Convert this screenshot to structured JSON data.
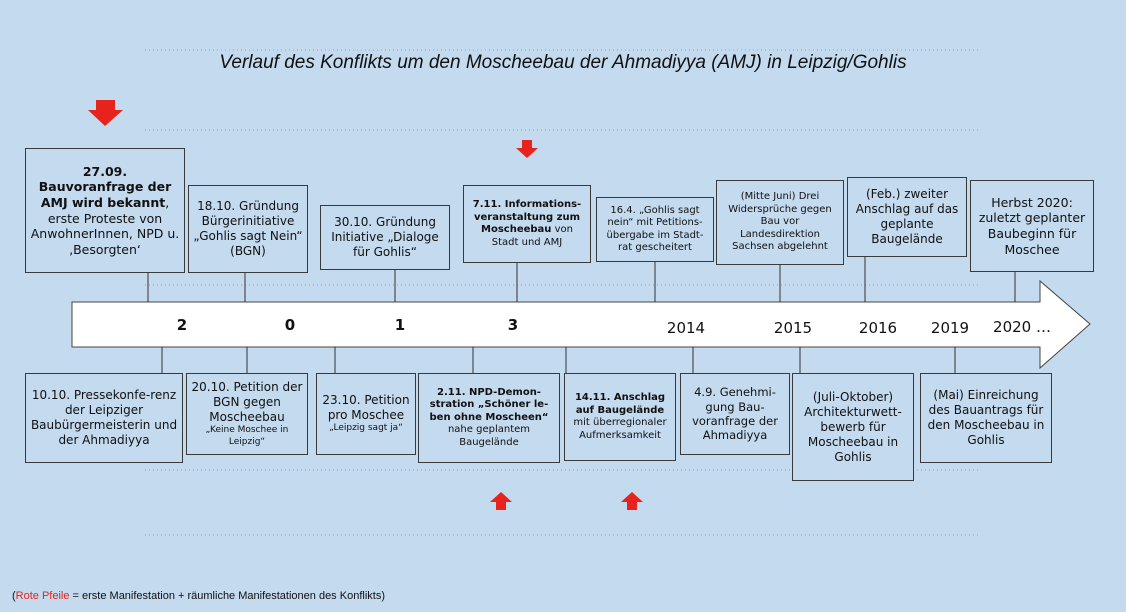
{
  "title": "Verlauf des Konflikts um den Moscheebau der Ahmadiyya (AMJ) in Leipzig/Gohlis",
  "top_events": [
    {
      "bold": "27.09. Bauvoranfrage der AMJ wird bekannt",
      "text": ", erste Proteste von AnwohnerInnen, NPD u. ‚Besorgten‘"
    },
    {
      "text": "18.10. Gründung Bürgerinitiative „Gohlis sagt Nein“ (BGN)"
    },
    {
      "text": "30.10. Gründung Initiative „Dialoge für Gohlis“"
    },
    {
      "bold": "7.11. Informations-veranstaltung zum Moscheebau",
      "text": " von Stadt und AMJ"
    },
    {
      "text": "16.4. „Gohlis sagt nein“ mit Petitions-übergabe im Stadt-rat gescheitert"
    },
    {
      "text": "(Mitte Juni) Drei Widersprüche gegen Bau vor Landesdirektion Sachsen abgelehnt"
    },
    {
      "text": "(Feb.) zweiter Anschlag auf das geplante Baugelände"
    },
    {
      "text": "Herbst 2020: zuletzt geplanter Baubeginn für Moschee"
    }
  ],
  "bottom_events": [
    {
      "text": "10.10. Pressekonfe-renz der Leipziger Baubürgermeisterin und der Ahmadiyya"
    },
    {
      "text": "20.10. Petition der BGN gegen Moscheebau",
      "small": "„Keine Moschee in Leipzig“"
    },
    {
      "text": "23.10. Petition pro Moschee",
      "small": "„Leipzig sagt ja“"
    },
    {
      "bold": "2.11. NPD-Demon-stration „Schöner le-ben ohne Moscheen“",
      "text": " nahe geplantem Baugelände"
    },
    {
      "bold": "14.11. Anschlag auf Baugelände",
      "text": " mit überregionaler Aufmerksamkeit"
    },
    {
      "text": "4.9. Genehmi-gung Bau-voranfrage der Ahmadiyya"
    },
    {
      "text": "(Juli-Oktober) Architekturwett-bewerb für Moscheebau in Gohlis"
    },
    {
      "text": "(Mai) Einreichung des Bauantrags für den Moscheebau in Gohlis"
    }
  ],
  "axis_labels": [
    "2",
    "0",
    "1",
    "3",
    "2014",
    "2015",
    "2016",
    "2019",
    "2020 …"
  ],
  "legend": {
    "open": "(",
    "highlight": "Rote Pfeile",
    "text": " = erste Manifestation + räumliche Manifestationen des Konflikts)"
  }
}
